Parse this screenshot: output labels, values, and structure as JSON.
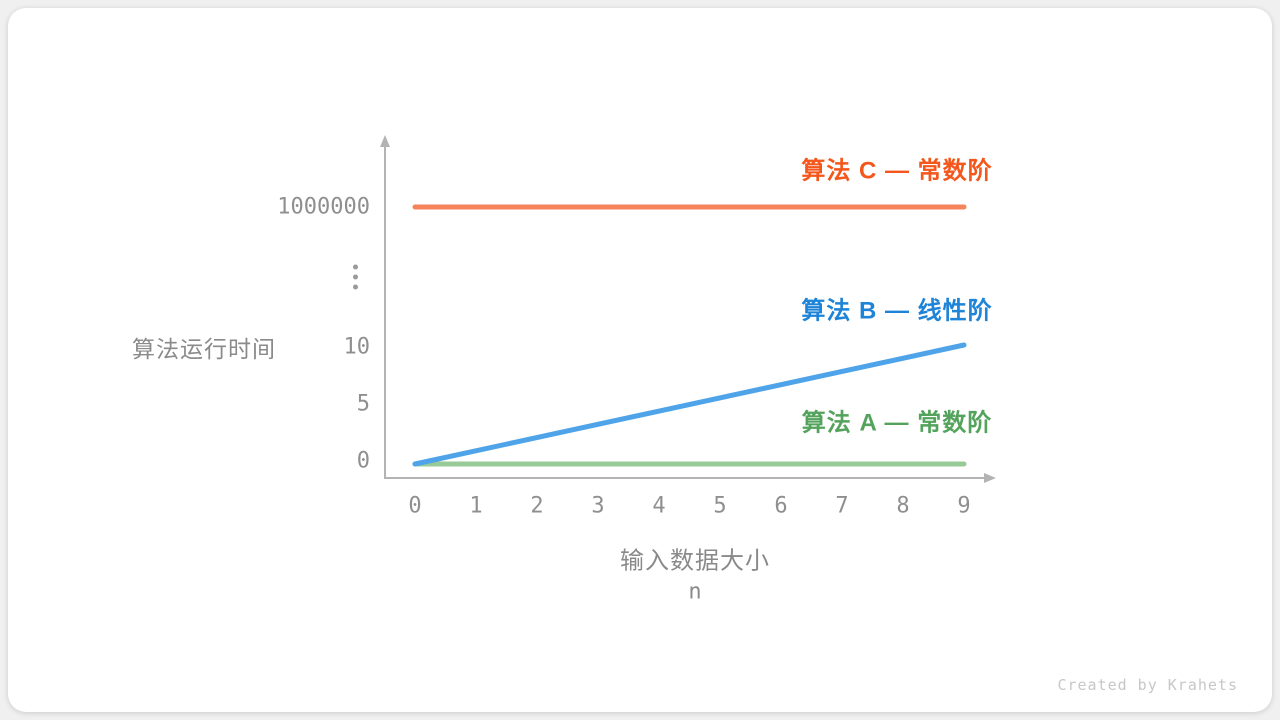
{
  "credit": "Created by Krahets",
  "chart_data": {
    "type": "line",
    "x_axis": {
      "title": "输入数据大小",
      "variable": "n",
      "ticks": [
        "0",
        "1",
        "2",
        "3",
        "4",
        "5",
        "6",
        "7",
        "8",
        "9"
      ],
      "range": [
        0,
        9
      ]
    },
    "y_axis": {
      "title": "算法运行时间",
      "broken_axis": true,
      "ticks": [
        {
          "label": "0",
          "value": 0
        },
        {
          "label": "5",
          "value": 5
        },
        {
          "label": "10",
          "value": 10
        },
        {
          "label": "⋮",
          "break": true
        },
        {
          "label": "1000000",
          "value": 1000000
        }
      ]
    },
    "series": [
      {
        "id": "c",
        "name": "算法 C — 常数阶",
        "complexity": "constant",
        "shape": "constant",
        "value": 1000000,
        "x_range": [
          0,
          9
        ],
        "label_color": "#F4571C",
        "line_color": "#F5845A"
      },
      {
        "id": "b",
        "name": "算法 B — 线性阶",
        "complexity": "linear",
        "shape": "linear",
        "x": [
          0,
          9
        ],
        "y": [
          0,
          10
        ],
        "label_color": "#1E84D8",
        "line_color": "#4EA3E9"
      },
      {
        "id": "a",
        "name": "算法 A — 常数阶",
        "complexity": "constant",
        "shape": "constant",
        "value": 0,
        "x_range": [
          0,
          9
        ],
        "label_color": "#54A35C",
        "line_color": "#97CA97"
      }
    ]
  }
}
